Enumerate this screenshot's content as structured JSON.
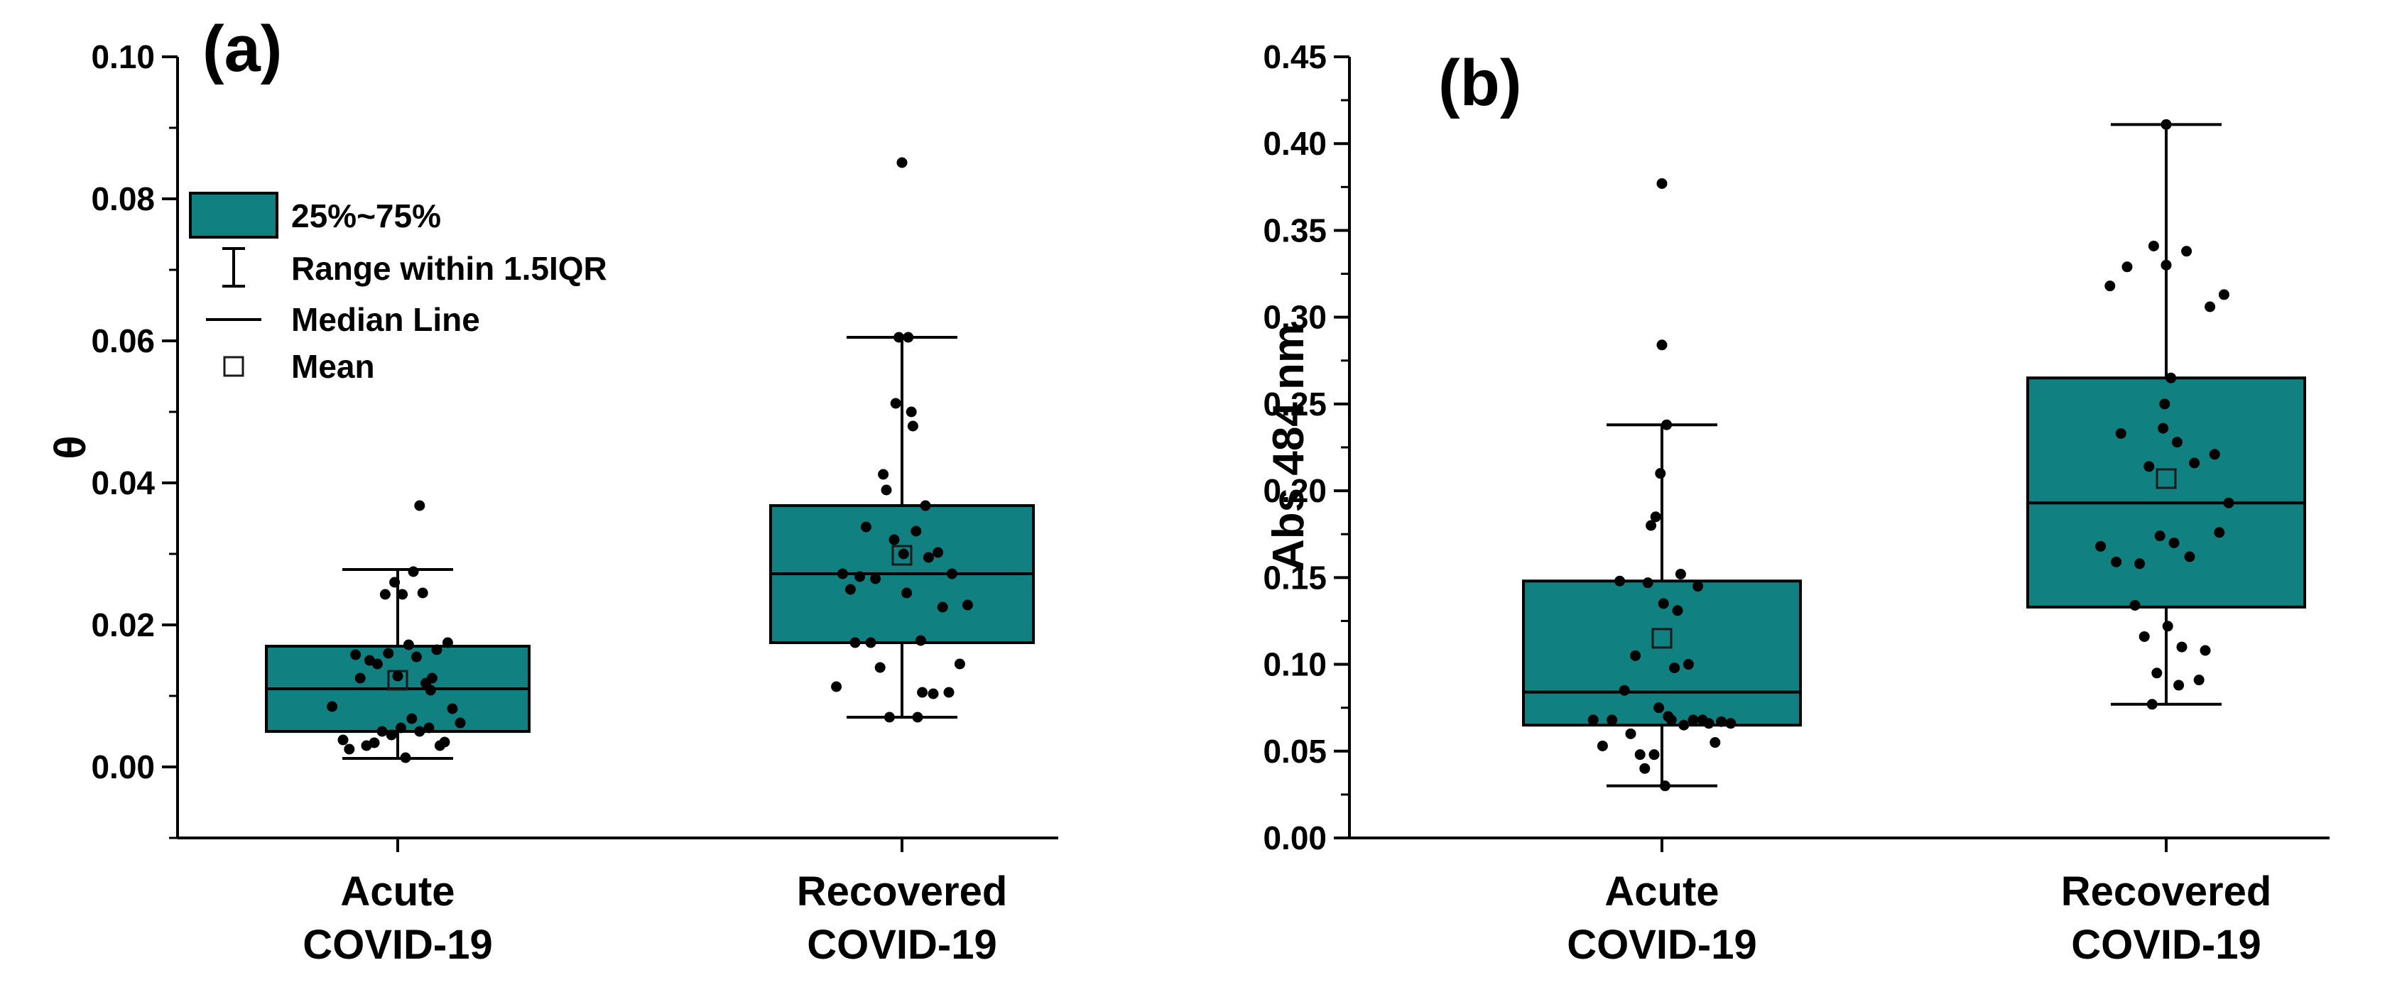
{
  "chart_data": [
    {
      "type": "box",
      "panel_label": "(a)",
      "title": "",
      "xlabel": "",
      "ylabel": "θ",
      "ylim": [
        -0.01,
        0.1
      ],
      "yticks": [
        "0.00",
        "0.02",
        "0.04",
        "0.06",
        "0.08",
        "0.10"
      ],
      "yticks_values": [
        0,
        0.02,
        0.04,
        0.06,
        0.08,
        0.1
      ],
      "categories": [
        [
          "Acute",
          "COVID-19"
        ],
        [
          "Recovered",
          "COVID-19"
        ]
      ],
      "colors": {
        "box": "#108080",
        "stroke": "#000000"
      },
      "legend": {
        "position": "upper-left",
        "items": [
          {
            "key": "box",
            "label": "25%~75%"
          },
          {
            "key": "whisker",
            "label": "Range within 1.5IQR"
          },
          {
            "key": "median",
            "label": "Median Line"
          },
          {
            "key": "mean",
            "label": "Mean"
          }
        ]
      },
      "series": [
        {
          "name": "Acute COVID-19",
          "q1": 0.005,
          "median": 0.011,
          "q3": 0.017,
          "mean": 0.0122,
          "whisker_low": 0.0012,
          "whisker_high": 0.0278,
          "points": [
            [
              -0.42,
              0.0085
            ],
            [
              -0.35,
              0.0038
            ],
            [
              -0.31,
              0.0025
            ],
            [
              -0.27,
              0.0158
            ],
            [
              -0.24,
              0.0125
            ],
            [
              -0.2,
              0.003
            ],
            [
              -0.18,
              0.015
            ],
            [
              -0.15,
              0.0034
            ],
            [
              -0.13,
              0.0145
            ],
            [
              -0.1,
              0.005
            ],
            [
              -0.08,
              0.0243
            ],
            [
              -0.06,
              0.016
            ],
            [
              -0.04,
              0.0045
            ],
            [
              -0.02,
              0.026
            ],
            [
              0.0,
              0.0128
            ],
            [
              0.02,
              0.0055
            ],
            [
              0.03,
              0.0243
            ],
            [
              0.05,
              0.0013
            ],
            [
              0.07,
              0.0172
            ],
            [
              0.09,
              0.0068
            ],
            [
              0.1,
              0.0275
            ],
            [
              0.12,
              0.0155
            ],
            [
              0.14,
              0.005
            ],
            [
              0.16,
              0.0245
            ],
            [
              0.18,
              0.0118
            ],
            [
              0.2,
              0.0055
            ],
            [
              0.22,
              0.0125
            ],
            [
              0.25,
              0.0165
            ],
            [
              0.27,
              0.003
            ],
            [
              0.3,
              0.0035
            ],
            [
              0.32,
              0.0175
            ],
            [
              0.35,
              0.0082
            ],
            [
              0.4,
              0.0062
            ],
            [
              0.14,
              0.0368
            ],
            [
              0.21,
              0.0108
            ]
          ]
        },
        {
          "name": "Recovered COVID-19",
          "q1": 0.0175,
          "median": 0.0272,
          "q3": 0.0368,
          "mean": 0.0298,
          "whisker_low": 0.007,
          "whisker_high": 0.0605,
          "points": [
            [
              -0.42,
              0.0113
            ],
            [
              -0.38,
              0.0272
            ],
            [
              -0.33,
              0.025
            ],
            [
              -0.3,
              0.0175
            ],
            [
              -0.27,
              0.0268
            ],
            [
              -0.23,
              0.0338
            ],
            [
              -0.2,
              0.0175
            ],
            [
              -0.17,
              0.0265
            ],
            [
              -0.14,
              0.014
            ],
            [
              -0.12,
              0.0412
            ],
            [
              -0.1,
              0.039
            ],
            [
              -0.08,
              0.007
            ],
            [
              -0.05,
              0.032
            ],
            [
              -0.04,
              0.0512
            ],
            [
              -0.02,
              0.0605
            ],
            [
              0.0,
              0.0851
            ],
            [
              0.01,
              0.03
            ],
            [
              0.03,
              0.0245
            ],
            [
              0.04,
              0.0605
            ],
            [
              0.06,
              0.05
            ],
            [
              0.07,
              0.048
            ],
            [
              0.09,
              0.0332
            ],
            [
              0.1,
              0.007
            ],
            [
              0.12,
              0.0178
            ],
            [
              0.13,
              0.0105
            ],
            [
              0.15,
              0.0368
            ],
            [
              0.17,
              0.0295
            ],
            [
              0.2,
              0.0103
            ],
            [
              0.23,
              0.0302
            ],
            [
              0.26,
              0.0225
            ],
            [
              0.3,
              0.0105
            ],
            [
              0.32,
              0.0272
            ],
            [
              0.37,
              0.0145
            ],
            [
              0.42,
              0.0228
            ]
          ]
        }
      ]
    },
    {
      "type": "box",
      "panel_label": "(b)",
      "title": "",
      "xlabel": "",
      "ylabel": "Abs 484 nm",
      "ylim": [
        0.0,
        0.45
      ],
      "yticks": [
        "0.00",
        "0.05",
        "0.10",
        "0.15",
        "0.20",
        "0.25",
        "0.30",
        "0.35",
        "0.40",
        "0.45"
      ],
      "yticks_values": [
        0,
        0.05,
        0.1,
        0.15,
        0.2,
        0.25,
        0.3,
        0.35,
        0.4,
        0.45
      ],
      "categories": [
        [
          "Acute",
          "COVID-19"
        ],
        [
          "Recovered",
          "COVID-19"
        ]
      ],
      "colors": {
        "box": "#108080",
        "stroke": "#000000"
      },
      "series": [
        {
          "name": "Acute COVID-19",
          "q1": 0.065,
          "median": 0.084,
          "q3": 0.148,
          "mean": 0.115,
          "whisker_low": 0.03,
          "whisker_high": 0.238,
          "points": [
            [
              -0.44,
              0.068
            ],
            [
              -0.38,
              0.053
            ],
            [
              -0.32,
              0.068
            ],
            [
              -0.27,
              0.148
            ],
            [
              -0.24,
              0.085
            ],
            [
              -0.2,
              0.06
            ],
            [
              -0.17,
              0.105
            ],
            [
              -0.14,
              0.048
            ],
            [
              -0.11,
              0.04
            ],
            [
              -0.09,
              0.147
            ],
            [
              -0.07,
              0.18
            ],
            [
              -0.05,
              0.048
            ],
            [
              -0.04,
              0.185
            ],
            [
              -0.02,
              0.075
            ],
            [
              -0.01,
              0.21
            ],
            [
              0.0,
              0.377
            ],
            [
              0.0,
              0.284
            ],
            [
              0.01,
              0.135
            ],
            [
              0.02,
              0.03
            ],
            [
              0.03,
              0.238
            ],
            [
              0.04,
              0.07
            ],
            [
              0.06,
              0.068
            ],
            [
              0.08,
              0.098
            ],
            [
              0.1,
              0.131
            ],
            [
              0.12,
              0.152
            ],
            [
              0.14,
              0.065
            ],
            [
              0.17,
              0.1
            ],
            [
              0.2,
              0.068
            ],
            [
              0.23,
              0.145
            ],
            [
              0.26,
              0.068
            ],
            [
              0.3,
              0.066
            ],
            [
              0.34,
              0.055
            ],
            [
              0.38,
              0.067
            ],
            [
              0.44,
              0.066
            ]
          ]
        },
        {
          "name": "Recovered COVID-19",
          "q1": 0.133,
          "median": 0.193,
          "q3": 0.265,
          "mean": 0.207,
          "whisker_low": 0.077,
          "whisker_high": 0.411,
          "points": [
            [
              -0.42,
              0.168
            ],
            [
              -0.36,
              0.318
            ],
            [
              -0.32,
              0.159
            ],
            [
              -0.29,
              0.233
            ],
            [
              -0.25,
              0.329
            ],
            [
              -0.2,
              0.134
            ],
            [
              -0.17,
              0.158
            ],
            [
              -0.14,
              0.116
            ],
            [
              -0.11,
              0.214
            ],
            [
              -0.09,
              0.077
            ],
            [
              -0.08,
              0.341
            ],
            [
              -0.06,
              0.095
            ],
            [
              -0.04,
              0.174
            ],
            [
              -0.02,
              0.236
            ],
            [
              -0.01,
              0.25
            ],
            [
              0.0,
              0.33
            ],
            [
              0.0,
              0.411
            ],
            [
              0.01,
              0.122
            ],
            [
              0.03,
              0.265
            ],
            [
              0.05,
              0.17
            ],
            [
              0.07,
              0.228
            ],
            [
              0.08,
              0.088
            ],
            [
              0.1,
              0.11
            ],
            [
              0.13,
              0.338
            ],
            [
              0.15,
              0.162
            ],
            [
              0.18,
              0.216
            ],
            [
              0.21,
              0.091
            ],
            [
              0.25,
              0.108
            ],
            [
              0.28,
              0.306
            ],
            [
              0.31,
              0.221
            ],
            [
              0.34,
              0.176
            ],
            [
              0.37,
              0.313
            ],
            [
              0.4,
              0.193
            ]
          ]
        }
      ]
    }
  ]
}
